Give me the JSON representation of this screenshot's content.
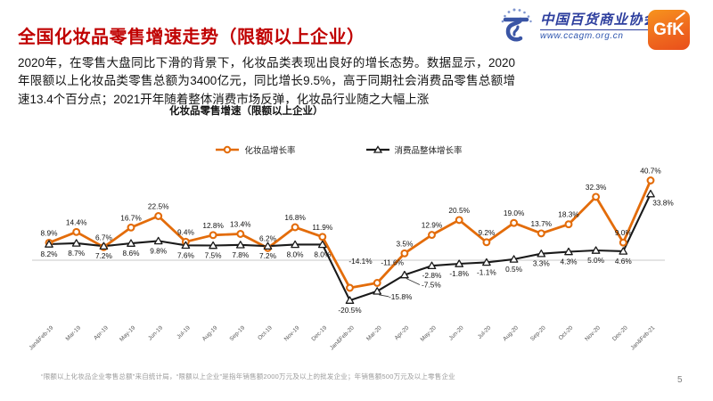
{
  "slide": {
    "title": "全国化妆品零售增速走势（限额以上企业）",
    "body_text": "2020年，在零售大盘同比下滑的背景下，化妆品类表现出良好的增长态势。数据显示，2020年限额以上化妆品类零售总额为3400亿元，同比增长9.5%，高于同期社会消费品零售总额增速13.4个百分点；2021开年随着整体消费市场反弹，化妆品行业随之大幅上涨",
    "footer_note": "“限额以上化妆品企业零售总额”来自统计局，“限额以上企业”是指年销售额2000万元及以上的批发企业；年销售额500万元及以上零售企业",
    "page_number": "5"
  },
  "logos": {
    "association_name": "中国百货商业协会",
    "association_url": "www.ccagm.org.cn",
    "gfk_label": "GfK"
  },
  "colors": {
    "title_red": "#c00000",
    "cosmetics_orange": "#e36c0a",
    "overall_black": "#1a1a1a",
    "association_blue": "#2e3f9e",
    "gfk_orange": "#ee5a1e",
    "zero_axis_gray": "#c9c9c9"
  },
  "chart_data": {
    "type": "line",
    "title": "化妆品零售增速（限额以上企业）",
    "categories": [
      "Jan&Feb-19",
      "Mar-19",
      "Apr-19",
      "May-19",
      "Jun-19",
      "Jul-19",
      "Aug-19",
      "Sep-19",
      "Oct-19",
      "Nov-19",
      "Dec-19",
      "Jan&Feb-20",
      "Mar-20",
      "Apr-20",
      "May-20",
      "Jun-20",
      "Jul-20",
      "Aug-20",
      "Sep-20",
      "Oct-20",
      "Nov-20",
      "Dec-20",
      "Jan&Feb-21"
    ],
    "series": [
      {
        "name": "化妆品增长率",
        "marker": "circle",
        "color": "#e36c0a",
        "values": [
          8.9,
          14.4,
          6.7,
          16.7,
          22.5,
          9.4,
          12.8,
          13.4,
          6.2,
          16.8,
          11.9,
          -14.1,
          -11.6,
          3.5,
          12.9,
          20.5,
          9.2,
          19.0,
          13.7,
          18.3,
          32.3,
          9.0,
          40.7
        ]
      },
      {
        "name": "消费品整体增长率",
        "marker": "triangle",
        "color": "#1a1a1a",
        "values": [
          8.2,
          8.7,
          7.2,
          8.6,
          9.8,
          7.6,
          7.5,
          7.8,
          7.2,
          8.0,
          8.0,
          -20.5,
          -15.8,
          -7.5,
          -2.8,
          -1.8,
          -1.1,
          0.5,
          3.3,
          4.3,
          5.0,
          4.6,
          33.8
        ]
      }
    ],
    "data_label_format": "0.0%",
    "ylim": [
      -25,
      45
    ],
    "grid": false,
    "legend_position": "top"
  }
}
